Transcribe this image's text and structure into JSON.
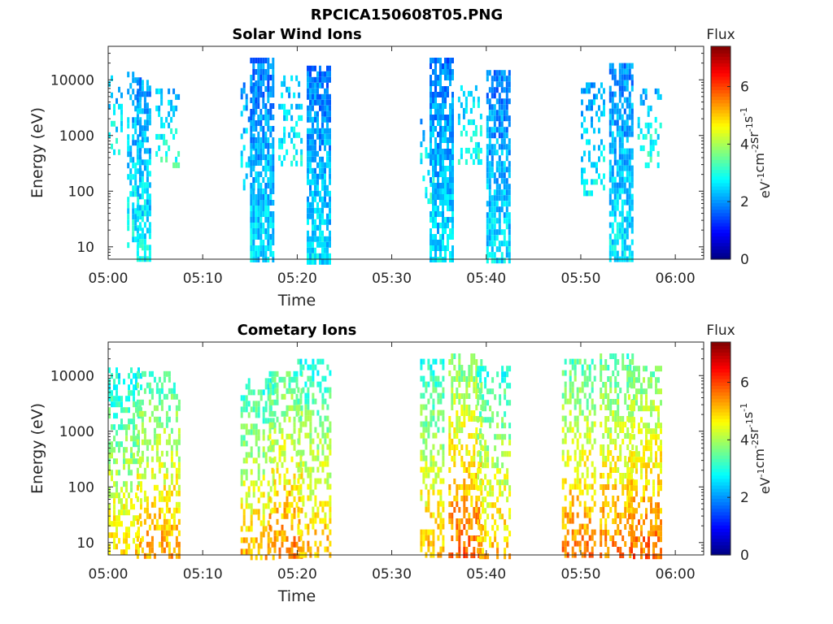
{
  "figure_title": "RPCICA150608T05.PNG",
  "colorbar": {
    "title": "Flux",
    "label_parts": [
      "eV",
      "-1",
      "cm",
      "-2",
      "sr",
      "-1",
      "s",
      "-1"
    ],
    "range": [
      0,
      7.4
    ],
    "ticks": [
      "0",
      "2",
      "4",
      "6"
    ],
    "colormap": "jet"
  },
  "chart_data": [
    {
      "type": "heatmap",
      "title": "Solar Wind Ions",
      "xlabel": "Time",
      "ylabel": "Energy (eV)",
      "x_ticks": [
        "05:00",
        "05:10",
        "05:20",
        "05:30",
        "05:40",
        "05:50",
        "06:00"
      ],
      "y_ticks": [
        "10",
        "100",
        "1000",
        "10000"
      ],
      "y_scale": "log",
      "xlim": [
        "05:00",
        "06:03"
      ],
      "ylim": [
        6,
        40000
      ],
      "bursts": [
        {
          "start": "05:00",
          "end": "05:01",
          "emin": 500,
          "emax": 12000,
          "flux": 2.2,
          "density": 0.25
        },
        {
          "start": "05:02",
          "end": "05:03",
          "emin": 12,
          "emax": 14000,
          "flux": 2.0,
          "density": 0.45
        },
        {
          "start": "05:03",
          "end": "05:04",
          "emin": 6,
          "emax": 10000,
          "flux": 2.0,
          "density": 0.7
        },
        {
          "start": "05:05",
          "end": "05:07",
          "emin": 300,
          "emax": 7000,
          "flux": 2.3,
          "density": 0.3
        },
        {
          "start": "05:14",
          "end": "05:15",
          "emin": 120,
          "emax": 9000,
          "flux": 2.0,
          "density": 0.3
        },
        {
          "start": "05:15",
          "end": "05:17",
          "emin": 6,
          "emax": 25000,
          "flux": 1.8,
          "density": 0.75
        },
        {
          "start": "05:18",
          "end": "05:20",
          "emin": 300,
          "emax": 12000,
          "flux": 2.2,
          "density": 0.35
        },
        {
          "start": "05:21",
          "end": "05:23",
          "emin": 6,
          "emax": 18000,
          "flux": 1.8,
          "density": 0.75
        },
        {
          "start": "05:33",
          "end": "05:34",
          "emin": 60,
          "emax": 2000,
          "flux": 2.3,
          "density": 0.3
        },
        {
          "start": "05:34",
          "end": "05:36",
          "emin": 6,
          "emax": 25000,
          "flux": 1.8,
          "density": 0.75
        },
        {
          "start": "05:37",
          "end": "05:39",
          "emin": 300,
          "emax": 8000,
          "flux": 2.3,
          "density": 0.35
        },
        {
          "start": "05:40",
          "end": "05:42",
          "emin": 6,
          "emax": 15000,
          "flux": 1.8,
          "density": 0.75
        },
        {
          "start": "05:50",
          "end": "05:52",
          "emin": 100,
          "emax": 9000,
          "flux": 2.1,
          "density": 0.35
        },
        {
          "start": "05:53",
          "end": "05:55",
          "emin": 6,
          "emax": 20000,
          "flux": 1.9,
          "density": 0.75
        },
        {
          "start": "05:56",
          "end": "05:58",
          "emin": 300,
          "emax": 7000,
          "flux": 2.3,
          "density": 0.3
        }
      ]
    },
    {
      "type": "heatmap",
      "title": "Cometary Ions",
      "xlabel": "Time",
      "ylabel": "Energy (eV)",
      "x_ticks": [
        "05:00",
        "05:10",
        "05:20",
        "05:30",
        "05:40",
        "05:50",
        "06:00"
      ],
      "y_ticks": [
        "10",
        "100",
        "1000",
        "10000"
      ],
      "y_scale": "log",
      "xlim": [
        "05:00",
        "06:03"
      ],
      "ylim": [
        6,
        40000
      ],
      "bursts": [
        {
          "start": "05:00",
          "end": "05:03",
          "emin": 6,
          "emax": 14000,
          "flux": 2.8,
          "density": 0.4
        },
        {
          "start": "05:03",
          "end": "05:07",
          "emin": 6,
          "emax": 12000,
          "flux": 3.2,
          "density": 0.45
        },
        {
          "start": "05:14",
          "end": "05:17",
          "emin": 6,
          "emax": 9000,
          "flux": 3.0,
          "density": 0.4
        },
        {
          "start": "05:17",
          "end": "05:20",
          "emin": 6,
          "emax": 12000,
          "flux": 3.4,
          "density": 0.45
        },
        {
          "start": "05:20",
          "end": "05:23",
          "emin": 6,
          "emax": 20000,
          "flux": 3.0,
          "density": 0.4
        },
        {
          "start": "05:33",
          "end": "05:35",
          "emin": 6,
          "emax": 20000,
          "flux": 3.0,
          "density": 0.5
        },
        {
          "start": "05:36",
          "end": "05:39",
          "emin": 6,
          "emax": 25000,
          "flux": 3.6,
          "density": 0.5
        },
        {
          "start": "05:39",
          "end": "05:42",
          "emin": 6,
          "emax": 15000,
          "flux": 3.0,
          "density": 0.4
        },
        {
          "start": "05:48",
          "end": "05:51",
          "emin": 6,
          "emax": 20000,
          "flux": 3.4,
          "density": 0.5
        },
        {
          "start": "05:52",
          "end": "05:55",
          "emin": 6,
          "emax": 25000,
          "flux": 3.4,
          "density": 0.5
        },
        {
          "start": "05:55",
          "end": "05:58",
          "emin": 6,
          "emax": 15000,
          "flux": 3.6,
          "density": 0.5
        }
      ]
    }
  ]
}
